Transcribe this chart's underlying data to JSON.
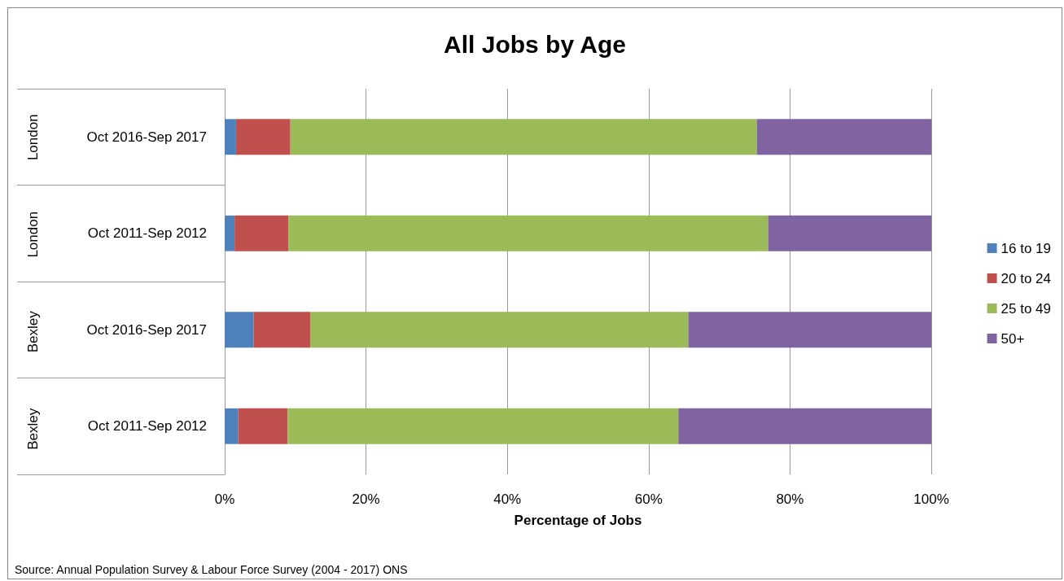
{
  "chart_data": {
    "type": "bar",
    "title": "All Jobs by Age",
    "xlabel": "Percentage of Jobs",
    "orientation": "horizontal",
    "stacked": true,
    "grid": "x",
    "legend": "right",
    "categories": [
      "Oct 2016-Sep 2017",
      "Oct 2011-Sep 2012",
      "Oct 2016-Sep 2017",
      "Oct 2011-Sep 2012"
    ],
    "series": [
      {
        "name": "16 to 19",
        "color": "#4f81bd",
        "values": [
          1.6,
          1.4,
          4.1,
          1.9
        ]
      },
      {
        "name": "20 to 24",
        "color": "#c0504d",
        "values": [
          7.7,
          7.6,
          8.0,
          7.0
        ]
      },
      {
        "name": "25 to 49",
        "color": "#9bbb59",
        "values": [
          66.0,
          67.9,
          53.5,
          55.3
        ]
      },
      {
        "name": "50+",
        "color": "#8064a2",
        "values": [
          24.7,
          23.1,
          34.4,
          35.8
        ]
      }
    ],
    "xlim": [
      0,
      100
    ],
    "xticks": [
      {
        "value": 0,
        "label": "0%"
      },
      {
        "value": 20,
        "label": "20%"
      },
      {
        "value": 40,
        "label": "40%"
      },
      {
        "value": 60,
        "label": "60%"
      },
      {
        "value": 80,
        "label": "80%"
      },
      {
        "value": 100,
        "label": "100%"
      }
    ],
    "annotations": [
      "London",
      "London",
      "Bexley",
      "Bexley",
      "Source: Annual Population Survey & Labour Force Survey (2004 - 2017) ONS"
    ]
  }
}
